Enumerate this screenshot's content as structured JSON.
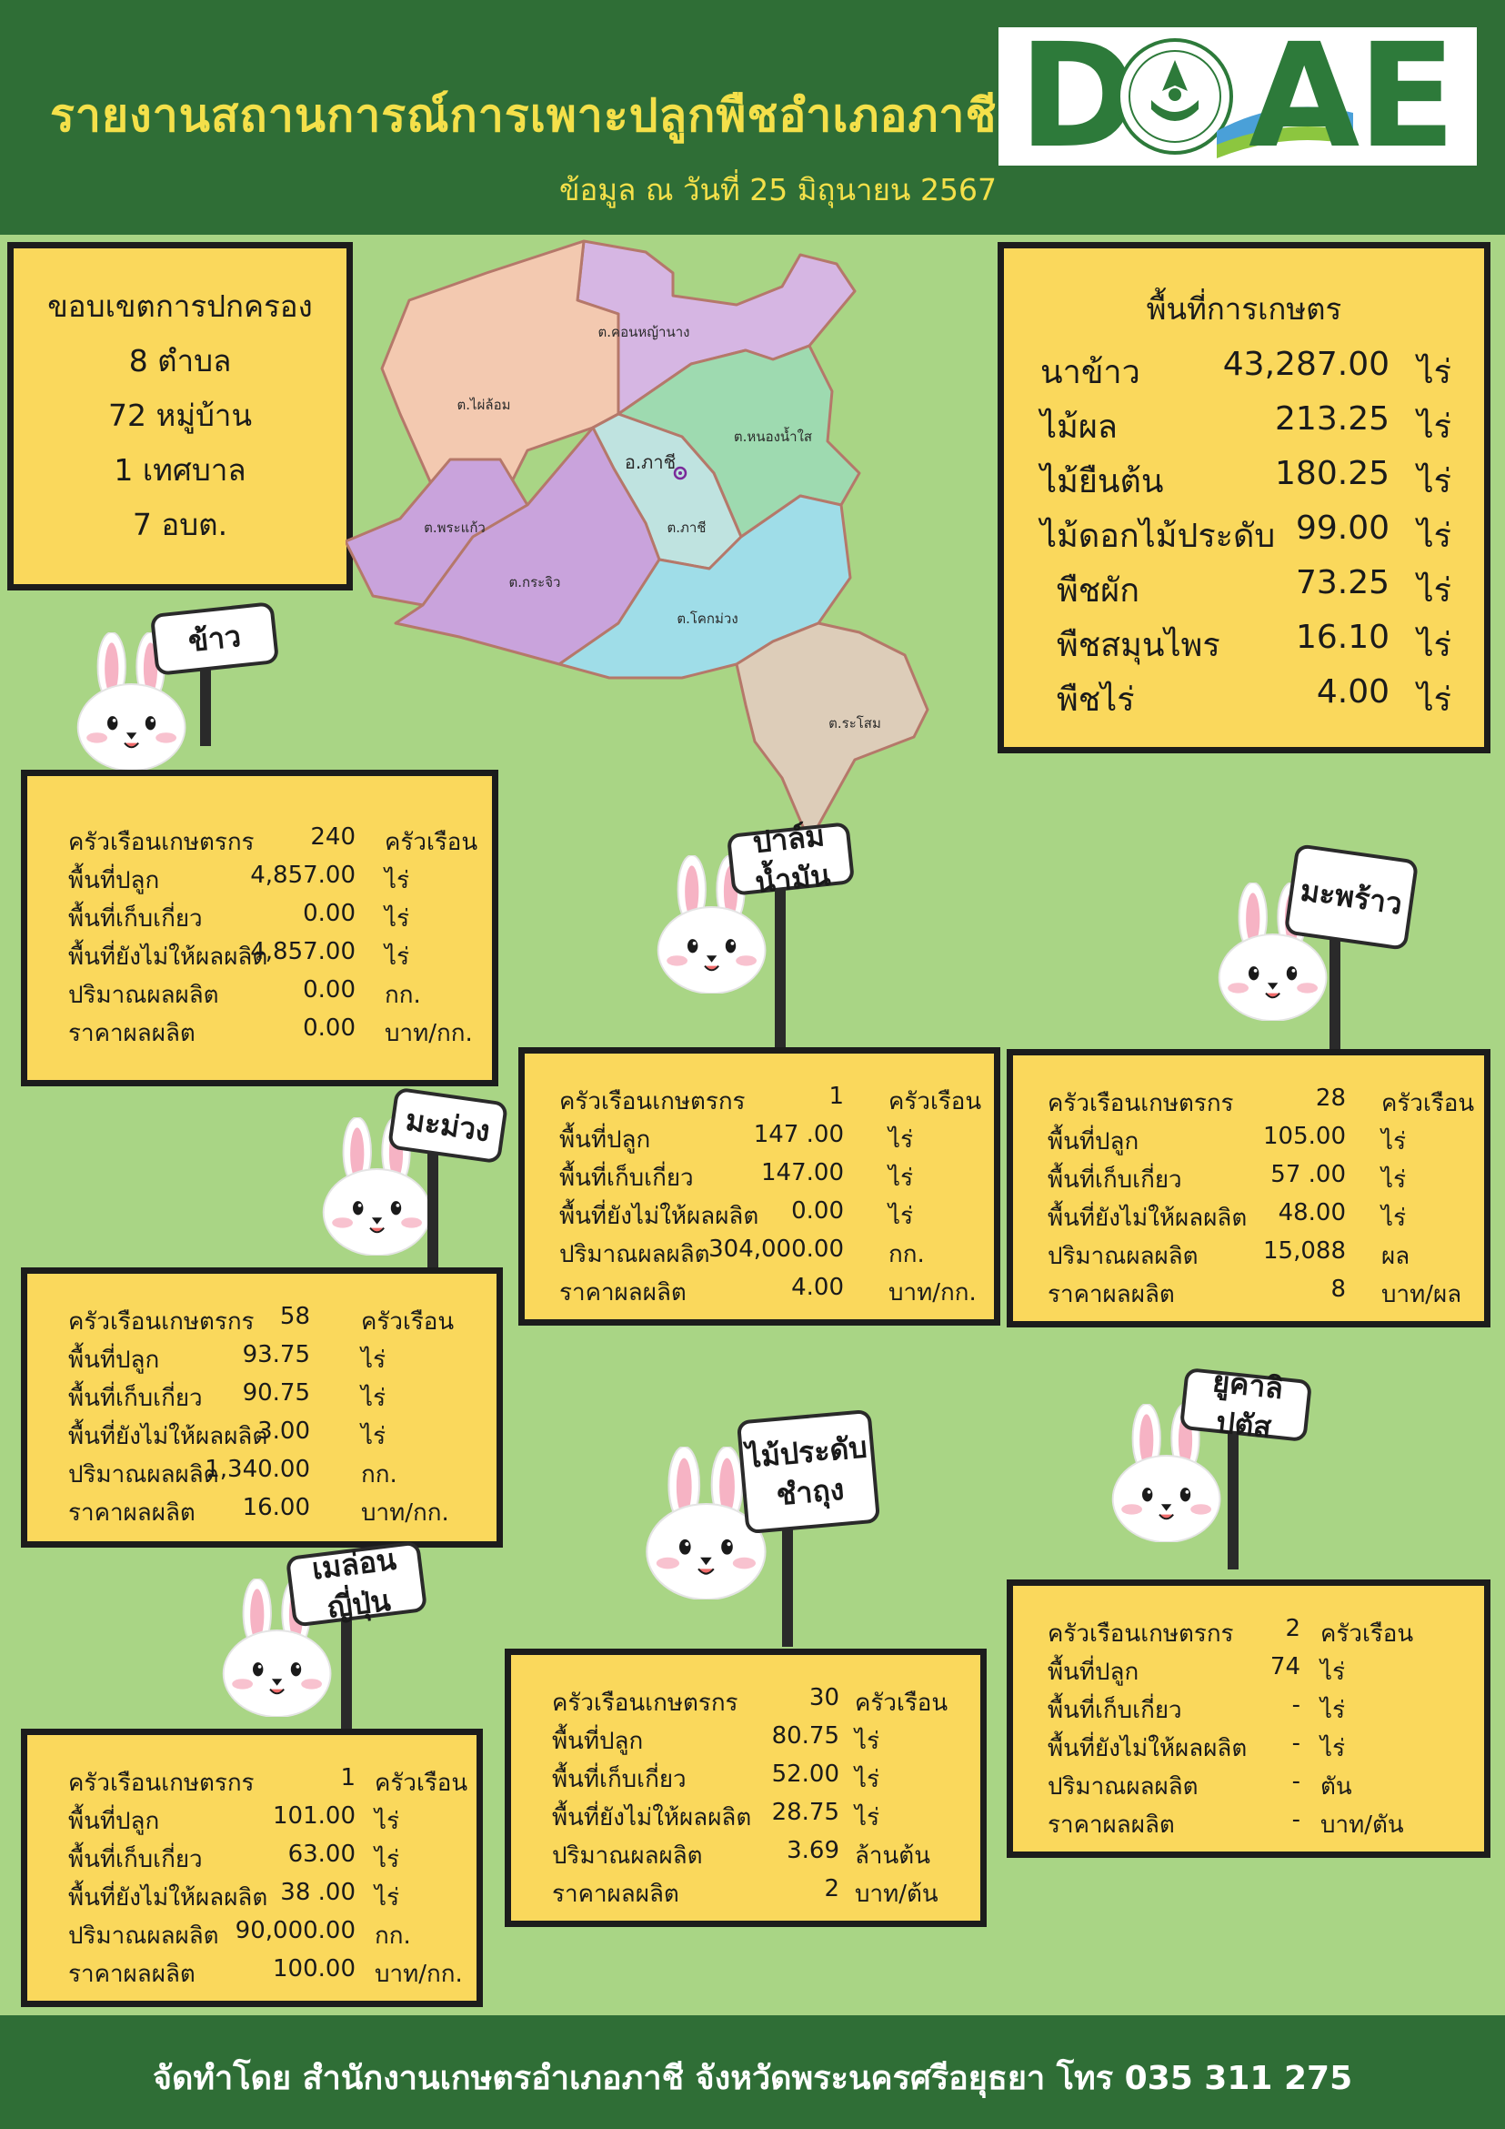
{
  "header": {
    "title": "รายงานสถานการณ์การเพาะปลูกพืชอำเภอภาชี",
    "subtitle": "ข้อมูล ณ วันที่ 25 มิถุนายน 2567",
    "logo_letters": [
      "D",
      "A",
      "E"
    ],
    "logo_icon": "doae-seal-icon"
  },
  "colors": {
    "header_bg": "#2f6e36",
    "page_bg": "#a9d585",
    "box_bg": "#fad85c",
    "title_text": "#f4e04a"
  },
  "admin": {
    "title": "ขอบเขตการปกครอง",
    "lines": [
      "8 ตำบล",
      "72 หมู่บ้าน",
      "1 เทศบาล",
      "7 อบต."
    ]
  },
  "map": {
    "center_label": "อ.ภาชี",
    "districts": [
      {
        "name": "ต.คอนหญ้านาง",
        "color": "#d6b6e3"
      },
      {
        "name": "ต.ไผ่ล้อม",
        "color": "#f3c9b0"
      },
      {
        "name": "ต.หนองน้ำใส",
        "color": "#9edab0"
      },
      {
        "name": "ต.ภาชี",
        "color": "#bfe3e0"
      },
      {
        "name": "ต.พระแก้ว",
        "color": "#c9a3dc"
      },
      {
        "name": "ต.กระจิว",
        "color": "#c9a3dc"
      },
      {
        "name": "ต.โคกม่วง",
        "color": "#9fdde8"
      },
      {
        "name": "ต.ระโสม",
        "color": "#ddcdb9"
      }
    ]
  },
  "area": {
    "title": "พื้นที่การเกษตร",
    "rows": [
      {
        "name": "นาข้าว",
        "value": "43,287.00",
        "unit": "ไร่"
      },
      {
        "name": "ไม้ผล",
        "value": "213.25",
        "unit": "ไร่"
      },
      {
        "name": "ไม้ยืนต้น",
        "value": "180.25",
        "unit": "ไร่"
      },
      {
        "name": "ไม้ดอกไม้ประดับ",
        "value": "99.00",
        "unit": "ไร่"
      },
      {
        "name": "พืชผัก",
        "value": "73.25",
        "unit": "ไร่"
      },
      {
        "name": "พืชสมุนไพร",
        "value": "16.10",
        "unit": "ไร่"
      },
      {
        "name": "พืชไร่",
        "value": "4.00",
        "unit": "ไร่"
      }
    ]
  },
  "crops": [
    {
      "id": "rice",
      "sign": "ข้าว",
      "rows": [
        {
          "label": "ครัวเรือนเกษตรกร",
          "value": "240",
          "unit": "ครัวเรือน"
        },
        {
          "label": "พื้นที่ปลูก",
          "value": "4,857.00",
          "unit": "ไร่"
        },
        {
          "label": "พื้นที่เก็บเกี่ยว",
          "value": "0.00",
          "unit": "ไร่"
        },
        {
          "label": "พื้นที่ยังไม่ให้ผลผลิต",
          "value": "4,857.00",
          "unit": "ไร่"
        },
        {
          "label": "ปริมาณผลผลิต",
          "value": "0.00",
          "unit": "กก."
        },
        {
          "label": "ราคาผลผลิต",
          "value": "0.00",
          "unit": "บาท/กก."
        }
      ]
    },
    {
      "id": "palm",
      "sign": "ปาล์มน้ำมัน",
      "rows": [
        {
          "label": "ครัวเรือนเกษตรกร",
          "value": "1",
          "unit": "ครัวเรือน"
        },
        {
          "label": "พื้นที่ปลูก",
          "value": "147 .00",
          "unit": "ไร่"
        },
        {
          "label": "พื้นที่เก็บเกี่ยว",
          "value": "147.00",
          "unit": "ไร่"
        },
        {
          "label": "พื้นที่ยังไม่ให้ผลผลิต",
          "value": "0.00",
          "unit": "ไร่"
        },
        {
          "label": "ปริมาณผลผลิต",
          "value": "304,000.00",
          "unit": "กก."
        },
        {
          "label": "ราคาผลผลิต",
          "value": "4.00",
          "unit": "บาท/กก."
        }
      ]
    },
    {
      "id": "coconut",
      "sign": "มะพร้าว",
      "rows": [
        {
          "label": "ครัวเรือนเกษตรกร",
          "value": "28",
          "unit": "ครัวเรือน"
        },
        {
          "label": "พื้นที่ปลูก",
          "value": "105.00",
          "unit": "ไร่"
        },
        {
          "label": "พื้นที่เก็บเกี่ยว",
          "value": "57 .00",
          "unit": "ไร่"
        },
        {
          "label": "พื้นที่ยังไม่ให้ผลผลิต",
          "value": "48.00",
          "unit": "ไร่"
        },
        {
          "label": "ปริมาณผลผลิต",
          "value": "15,088",
          "unit": "ผล"
        },
        {
          "label": "ราคาผลผลิต",
          "value": "8",
          "unit": "บาท/ผล"
        }
      ]
    },
    {
      "id": "mango",
      "sign": "มะม่วง",
      "rows": [
        {
          "label": "ครัวเรือนเกษตรกร",
          "value": "58",
          "unit": "ครัวเรือน"
        },
        {
          "label": "พื้นที่ปลูก",
          "value": "93.75",
          "unit": "ไร่"
        },
        {
          "label": "พื้นที่เก็บเกี่ยว",
          "value": "90.75",
          "unit": "ไร่"
        },
        {
          "label": "พื้นที่ยังไม่ให้ผลผลิต",
          "value": "3.00",
          "unit": "ไร่"
        },
        {
          "label": "ปริมาณผลผลิต",
          "value": "1,340.00",
          "unit": "กก."
        },
        {
          "label": "ราคาผลผลิต",
          "value": "16.00",
          "unit": "บาท/กก."
        }
      ]
    },
    {
      "id": "ornamental",
      "sign": "ไม้ประดับ ชำถุง",
      "rows": [
        {
          "label": "ครัวเรือนเกษตรกร",
          "value": "30",
          "unit": "ครัวเรือน"
        },
        {
          "label": "พื้นที่ปลูก",
          "value": "80.75",
          "unit": "ไร่"
        },
        {
          "label": "พื้นที่เก็บเกี่ยว",
          "value": "52.00",
          "unit": "ไร่"
        },
        {
          "label": "พื้นที่ยังไม่ให้ผลผลิต",
          "value": "28.75",
          "unit": "ไร่"
        },
        {
          "label": "ปริมาณผลผลิต",
          "value": "3.69",
          "unit": "ล้านต้น"
        },
        {
          "label": "ราคาผลผลิต",
          "value": "2",
          "unit": "บาท/ต้น"
        }
      ]
    },
    {
      "id": "eucalyptus",
      "sign": "ยูคาลิปตัส",
      "rows": [
        {
          "label": "ครัวเรือนเกษตรกร",
          "value": "2",
          "unit": "ครัวเรือน"
        },
        {
          "label": "พื้นที่ปลูก",
          "value": "74",
          "unit": "ไร่"
        },
        {
          "label": "พื้นที่เก็บเกี่ยว",
          "value": "-",
          "unit": "ไร่"
        },
        {
          "label": "พื้นที่ยังไม่ให้ผลผลิต",
          "value": "-",
          "unit": "ไร่"
        },
        {
          "label": "ปริมาณผลผลิต",
          "value": "-",
          "unit": "ตัน"
        },
        {
          "label": "ราคาผลผลิต",
          "value": "-",
          "unit": "บาท/ตัน"
        }
      ]
    },
    {
      "id": "melon",
      "sign": "เมล่อนญี่ปุ่น",
      "rows": [
        {
          "label": "ครัวเรือนเกษตรกร",
          "value": "1",
          "unit": "ครัวเรือน"
        },
        {
          "label": "พื้นที่ปลูก",
          "value": "101.00",
          "unit": "ไร่"
        },
        {
          "label": "พื้นที่เก็บเกี่ยว",
          "value": "63.00",
          "unit": "ไร่"
        },
        {
          "label": "พื้นที่ยังไม่ให้ผลผลิต",
          "value": "38 .00",
          "unit": "ไร่"
        },
        {
          "label": "ปริมาณผลผลิต",
          "value": "90,000.00",
          "unit": "กก."
        },
        {
          "label": "ราคาผลผลิต",
          "value": "100.00",
          "unit": "บาท/กก."
        }
      ]
    }
  ],
  "footer": {
    "text": "จัดทำโดย สำนักงานเกษตรอำเภอภาชี จังหวัดพระนครศรีอยุธยา โทร 035 311 275"
  }
}
